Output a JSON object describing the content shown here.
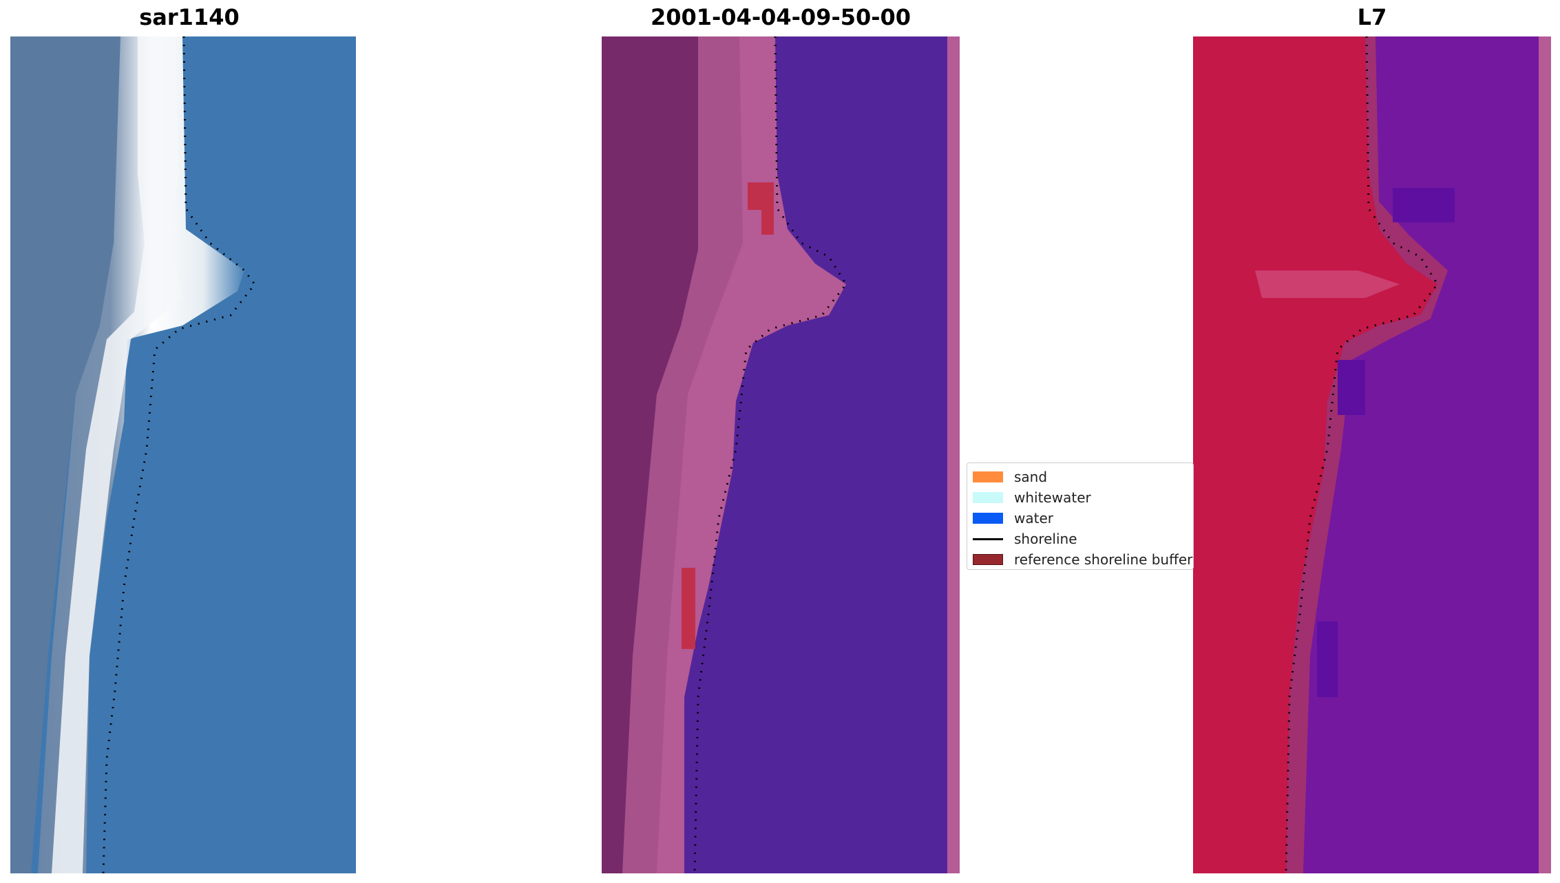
{
  "panels": [
    {
      "title": "sar1140"
    },
    {
      "title": "2001-04-04-09-50-00"
    },
    {
      "title": "L7"
    }
  ],
  "legend": {
    "items": [
      {
        "label": "sand",
        "color": "#ff8c3c",
        "kind": "patch"
      },
      {
        "label": "whitewater",
        "color": "#c8fafa",
        "kind": "patch"
      },
      {
        "label": "water",
        "color": "#0a5af5",
        "kind": "patch"
      },
      {
        "label": "shoreline",
        "color": "#000000",
        "kind": "line"
      },
      {
        "label": "reference shoreline buffer",
        "color": "#96282d",
        "kind": "patch"
      }
    ]
  },
  "colors": {
    "rgb_water": "#3f78b0",
    "rgb_beach": "#e8eef2",
    "rgb_land": "#5a7aa0",
    "class_water": "#53259a",
    "class_land": "#762a6a",
    "class_sand": "#b55b96",
    "class_buffer": "#c0304a",
    "mndwi_land": "#c41848",
    "mndwi_water": "#7418a0",
    "mndwi_transition": "#a0306f",
    "shoreline_dots": "#000000"
  }
}
